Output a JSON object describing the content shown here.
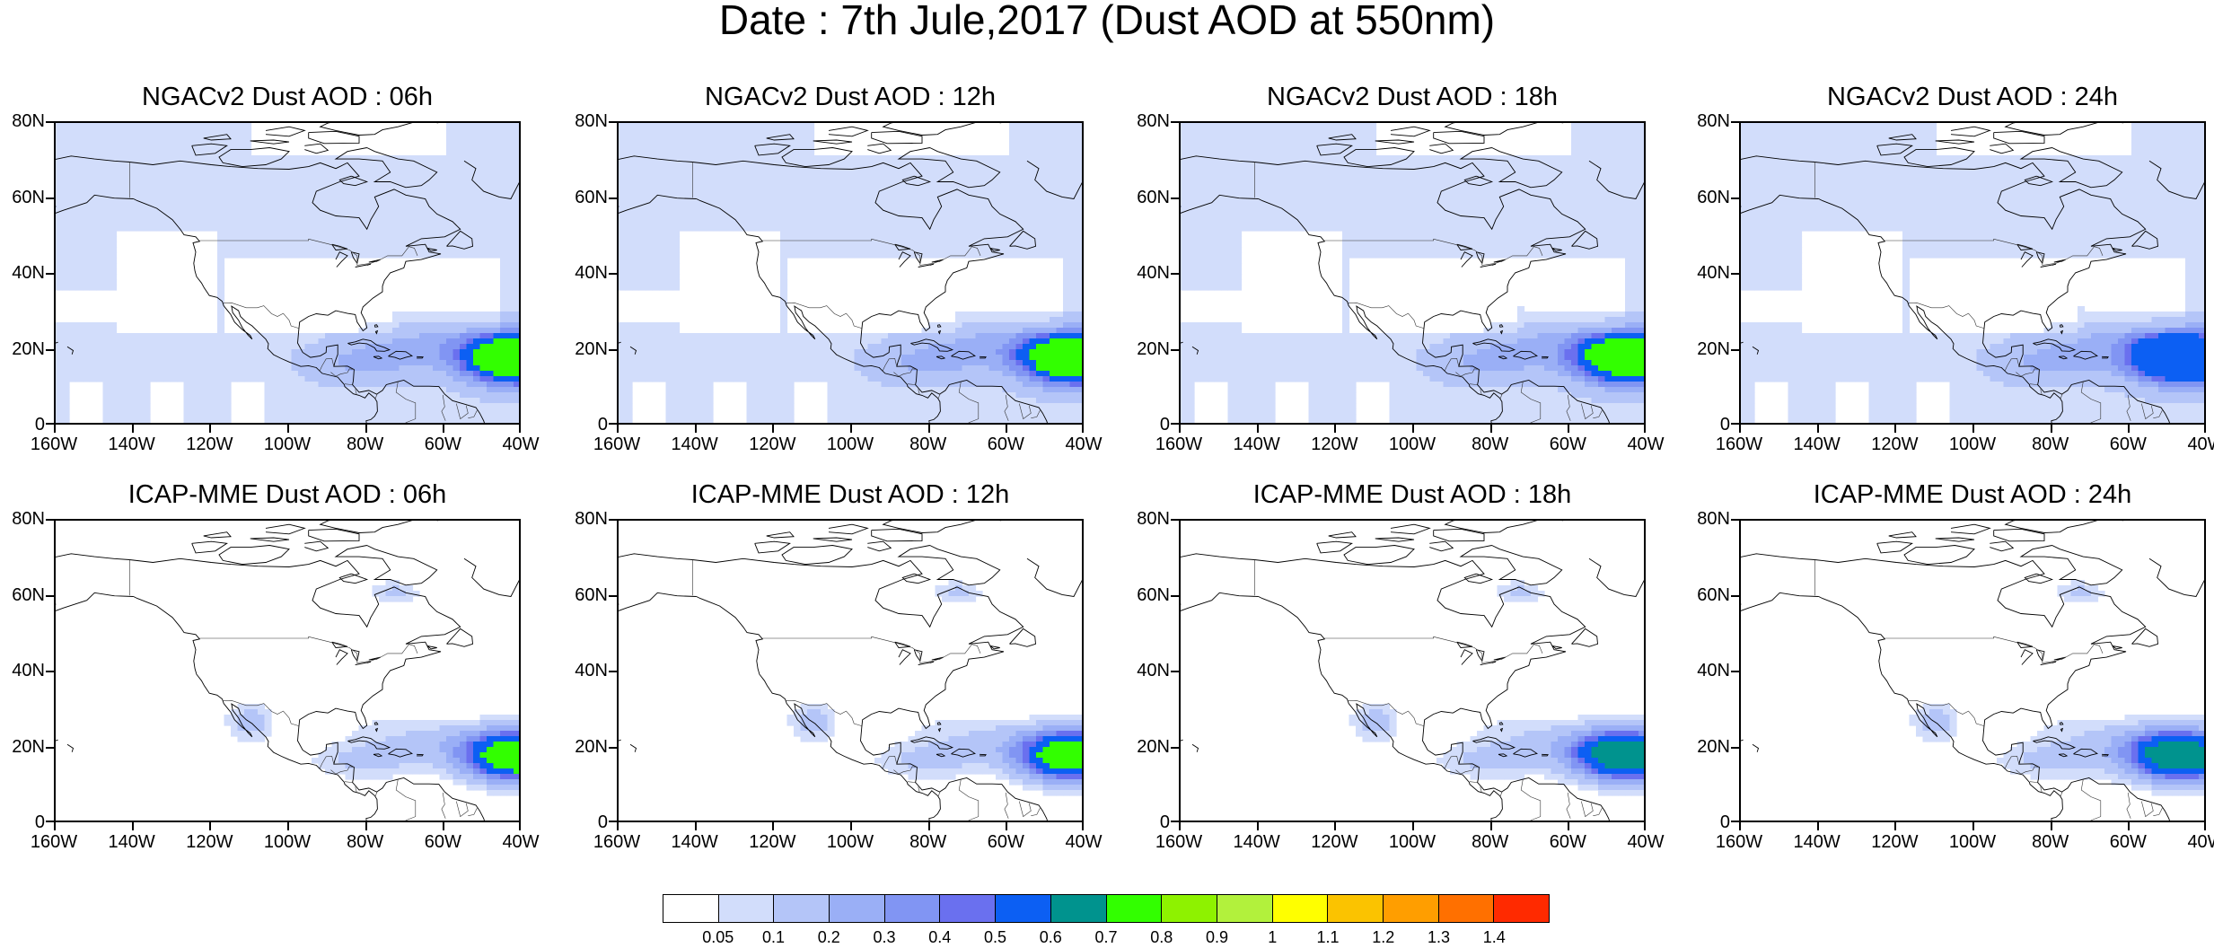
{
  "title": "Date : 7th Jule,2017 (Dust AOD at 550nm)",
  "panels": [
    {
      "title": "NGACv2 Dust AOD : 06h",
      "model": "NGACv2",
      "hour": "06h",
      "hot": "green",
      "shift": 0
    },
    {
      "title": "NGACv2 Dust AOD : 12h",
      "model": "NGACv2",
      "hour": "12h",
      "hot": "green",
      "shift": -4
    },
    {
      "title": "NGACv2 Dust AOD : 18h",
      "model": "NGACv2",
      "hour": "18h",
      "hot": "green",
      "shift": -8
    },
    {
      "title": "NGACv2 Dust AOD : 24h",
      "model": "NGACv2",
      "hour": "24h",
      "hot": "blue",
      "shift": -12
    },
    {
      "title": "ICAP-MME Dust AOD : 06h",
      "model": "ICAP-MME",
      "hour": "06h",
      "hot": "green",
      "shift": 0
    },
    {
      "title": "ICAP-MME Dust AOD : 12h",
      "model": "ICAP-MME",
      "hour": "12h",
      "hot": "green",
      "shift": -4
    },
    {
      "title": "ICAP-MME Dust AOD : 18h",
      "model": "ICAP-MME",
      "hour": "18h",
      "hot": "teal",
      "shift": -10
    },
    {
      "title": "ICAP-MME Dust AOD : 24h",
      "model": "ICAP-MME",
      "hour": "24h",
      "hot": "teal",
      "shift": -14
    }
  ],
  "axes": {
    "lat_ticks": [
      "80N",
      "60N",
      "40N",
      "20N",
      "0"
    ],
    "lon_ticks": [
      "160W",
      "140W",
      "120W",
      "100W",
      "80W",
      "60W",
      "40W"
    ],
    "lat_range": [
      0,
      80
    ],
    "lon_range": [
      -160,
      -40
    ]
  },
  "colorbar": {
    "labels": [
      "0.05",
      "0.1",
      "0.2",
      "0.3",
      "0.4",
      "0.5",
      "0.6",
      "0.7",
      "0.8",
      "0.9",
      "1",
      "1.1",
      "1.2",
      "1.3",
      "1.4"
    ],
    "colors": [
      "#ffffff",
      "#d2ddfb",
      "#b4c5f8",
      "#9aaff6",
      "#8195f3",
      "#6a70ef",
      "#0c5ff3",
      "#00938e",
      "#32ff00",
      "#8ef200",
      "#b2f13c",
      "#ffff00",
      "#fbc300",
      "#ff9e00",
      "#ff7000",
      "#ff2a00"
    ]
  }
}
